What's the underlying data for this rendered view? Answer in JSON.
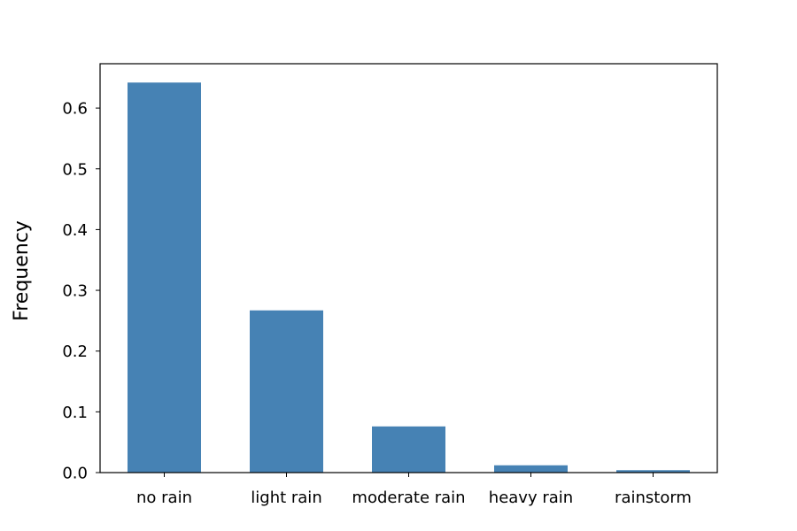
{
  "chart_data": {
    "type": "bar",
    "title": "",
    "xlabel": "",
    "ylabel": "Frequency",
    "categories": [
      "no rain",
      "light rain",
      "moderate rain",
      "heavy rain",
      "rainstorm"
    ],
    "values": [
      0.642,
      0.267,
      0.076,
      0.012,
      0.004
    ],
    "ylim": [
      0,
      0.673
    ],
    "yticks": [
      0.0,
      0.1,
      0.2,
      0.3,
      0.4,
      0.5,
      0.6
    ],
    "ytick_labels": [
      "0.0",
      "0.1",
      "0.2",
      "0.3",
      "0.4",
      "0.5",
      "0.6"
    ],
    "bar_color": "#4682b4",
    "grid": false,
    "legend": "none"
  }
}
